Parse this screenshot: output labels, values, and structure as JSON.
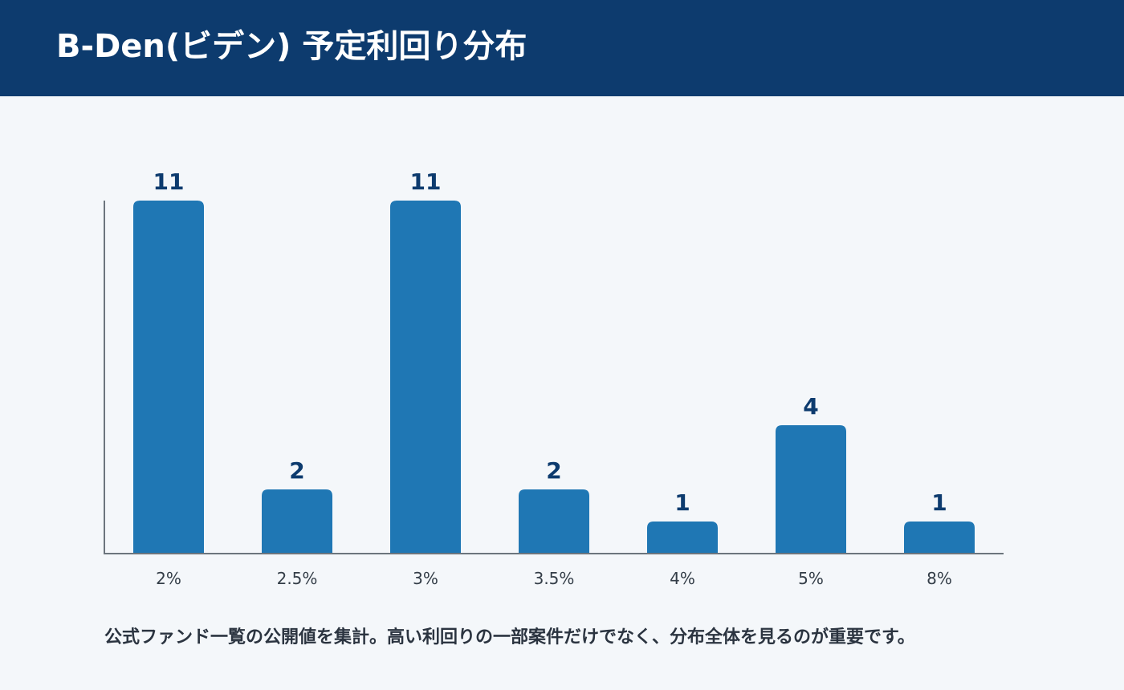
{
  "header": {
    "title": "B-Den(ビデン) 予定利回り分布"
  },
  "caption": "公式ファンド一覧の公開値を集計。高い利回りの一部案件だけでなく、分布全体を見るのが重要です。",
  "colors": {
    "header_bg": "#0d3b6e",
    "bar": "#1f77b4",
    "value_label": "#0d3b6e",
    "axis": "#6c757d",
    "background": "#f4f7fa"
  },
  "chart_data": {
    "type": "bar",
    "title": "B-Den(ビデン) 予定利回り分布",
    "xlabel": "",
    "ylabel": "",
    "categories": [
      "2%",
      "2.5%",
      "3%",
      "3.5%",
      "4%",
      "5%",
      "8%"
    ],
    "values": [
      11,
      2,
      11,
      2,
      1,
      4,
      1
    ],
    "data_labels": [
      "11",
      "2",
      "11",
      "2",
      "1",
      "4",
      "1"
    ],
    "ylim": [
      0,
      11
    ],
    "grid": false,
    "legend": "none"
  }
}
